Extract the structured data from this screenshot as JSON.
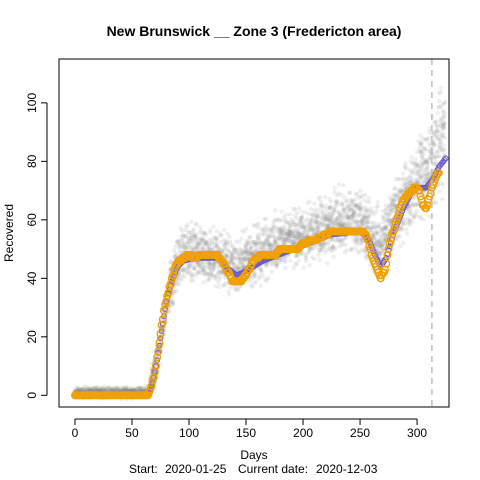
{
  "chart_data": {
    "type": "scatter",
    "title": "New Brunswick __ Zone 3 (Fredericton area)",
    "xlabel": "Days",
    "ylabel": "Recovered",
    "footer": {
      "start_label": "Start:",
      "start_date": "2020-01-25",
      "current_label": "Current date:",
      "current_date": "2020-12-03"
    },
    "xlim": [
      -14,
      328
    ],
    "ylim": [
      -4,
      115
    ],
    "x_ticks": [
      0,
      50,
      100,
      150,
      200,
      250,
      300
    ],
    "y_ticks": [
      0,
      20,
      40,
      60,
      80,
      100
    ],
    "current_day": 313,
    "colors": {
      "observed": "#f0a000",
      "fit_line": "#6a5acd",
      "band": "#808080",
      "current_line": "#bebebe"
    },
    "observed_key_points": [
      [
        0,
        0
      ],
      [
        64,
        0
      ],
      [
        67,
        3
      ],
      [
        70,
        8
      ],
      [
        73,
        15
      ],
      [
        76,
        24
      ],
      [
        79,
        31
      ],
      [
        82,
        35
      ],
      [
        85,
        40
      ],
      [
        88,
        44
      ],
      [
        92,
        46
      ],
      [
        100,
        48
      ],
      [
        105,
        47
      ],
      [
        110,
        48
      ],
      [
        125,
        48
      ],
      [
        132,
        44
      ],
      [
        138,
        39
      ],
      [
        145,
        39
      ],
      [
        150,
        41
      ],
      [
        158,
        47
      ],
      [
        165,
        48
      ],
      [
        175,
        48
      ],
      [
        180,
        50
      ],
      [
        195,
        50
      ],
      [
        200,
        52
      ],
      [
        210,
        53
      ],
      [
        220,
        55
      ],
      [
        225,
        56
      ],
      [
        252,
        56
      ],
      [
        256,
        54
      ],
      [
        260,
        48
      ],
      [
        264,
        44
      ],
      [
        268,
        40
      ],
      [
        272,
        43
      ],
      [
        276,
        52
      ],
      [
        282,
        60
      ],
      [
        288,
        67
      ],
      [
        293,
        69
      ],
      [
        298,
        71
      ],
      [
        302,
        70
      ],
      [
        305,
        65
      ],
      [
        308,
        64
      ],
      [
        311,
        68
      ],
      [
        314,
        72
      ],
      [
        317,
        75
      ],
      [
        319,
        76
      ]
    ],
    "fit_key_points": [
      [
        0,
        0
      ],
      [
        64,
        0
      ],
      [
        68,
        4
      ],
      [
        72,
        12
      ],
      [
        76,
        22
      ],
      [
        80,
        32
      ],
      [
        85,
        39
      ],
      [
        90,
        44
      ],
      [
        95,
        46
      ],
      [
        105,
        47
      ],
      [
        125,
        47
      ],
      [
        135,
        43
      ],
      [
        142,
        41
      ],
      [
        152,
        43
      ],
      [
        165,
        46
      ],
      [
        185,
        49
      ],
      [
        205,
        52
      ],
      [
        225,
        55
      ],
      [
        250,
        56
      ],
      [
        258,
        53
      ],
      [
        263,
        48
      ],
      [
        268,
        44
      ],
      [
        273,
        47
      ],
      [
        280,
        56
      ],
      [
        288,
        64
      ],
      [
        296,
        70
      ],
      [
        302,
        71
      ],
      [
        308,
        71
      ],
      [
        314,
        74
      ],
      [
        319,
        78
      ],
      [
        325,
        81
      ]
    ],
    "band_key_points": [
      [
        0,
        -1,
        3
      ],
      [
        40,
        -1,
        3
      ],
      [
        64,
        -1,
        3
      ],
      [
        70,
        2,
        16
      ],
      [
        76,
        14,
        30
      ],
      [
        82,
        26,
        44
      ],
      [
        88,
        34,
        54
      ],
      [
        95,
        38,
        60
      ],
      [
        110,
        38,
        60
      ],
      [
        130,
        36,
        56
      ],
      [
        142,
        34,
        54
      ],
      [
        155,
        36,
        58
      ],
      [
        175,
        40,
        62
      ],
      [
        200,
        44,
        66
      ],
      [
        225,
        47,
        70
      ],
      [
        250,
        48,
        72
      ],
      [
        258,
        42,
        68
      ],
      [
        266,
        38,
        65
      ],
      [
        275,
        44,
        70
      ],
      [
        290,
        54,
        82
      ],
      [
        305,
        60,
        92
      ],
      [
        315,
        64,
        100
      ],
      [
        325,
        70,
        110
      ]
    ]
  }
}
